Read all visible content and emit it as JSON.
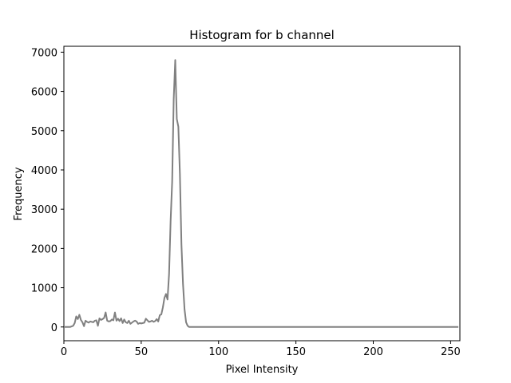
{
  "chart_data": {
    "type": "line",
    "title": "Histogram for b channel",
    "xlabel": "Pixel Intensity",
    "ylabel": "Frequency",
    "xlim": [
      0,
      256
    ],
    "ylim": [
      -350,
      7150
    ],
    "x_ticks": [
      0,
      50,
      100,
      150,
      200,
      250
    ],
    "y_ticks": [
      0,
      1000,
      2000,
      3000,
      4000,
      5000,
      6000,
      7000
    ],
    "grid": false,
    "series": [
      {
        "color": "#808080",
        "x": [
          0,
          2,
          4,
          6,
          7,
          8,
          9,
          10,
          11,
          12,
          13,
          14,
          15,
          16,
          17,
          18,
          19,
          20,
          21,
          22,
          23,
          24,
          25,
          26,
          27,
          28,
          29,
          30,
          31,
          32,
          33,
          34,
          35,
          36,
          37,
          38,
          39,
          40,
          41,
          42,
          43,
          44,
          45,
          46,
          47,
          48,
          49,
          50,
          51,
          52,
          53,
          54,
          55,
          56,
          57,
          58,
          59,
          60,
          61,
          62,
          63,
          64,
          65,
          66,
          67,
          68,
          69,
          70,
          71,
          72,
          73,
          74,
          75,
          76,
          77,
          78,
          79,
          80,
          81,
          82,
          85,
          90,
          100,
          150,
          200,
          255
        ],
        "y": [
          0,
          0,
          0,
          30,
          100,
          270,
          200,
          310,
          180,
          120,
          20,
          160,
          130,
          110,
          140,
          130,
          120,
          160,
          170,
          30,
          220,
          180,
          200,
          230,
          370,
          160,
          140,
          150,
          190,
          170,
          370,
          160,
          210,
          150,
          220,
          100,
          190,
          120,
          100,
          160,
          80,
          110,
          140,
          160,
          140,
          80,
          100,
          90,
          100,
          110,
          210,
          170,
          130,
          140,
          160,
          130,
          150,
          200,
          140,
          300,
          320,
          500,
          740,
          840,
          700,
          1350,
          2700,
          3700,
          5800,
          6800,
          5300,
          5100,
          3900,
          2100,
          1100,
          450,
          120,
          30,
          0,
          0,
          0,
          0,
          0,
          0,
          0,
          0
        ]
      }
    ]
  }
}
